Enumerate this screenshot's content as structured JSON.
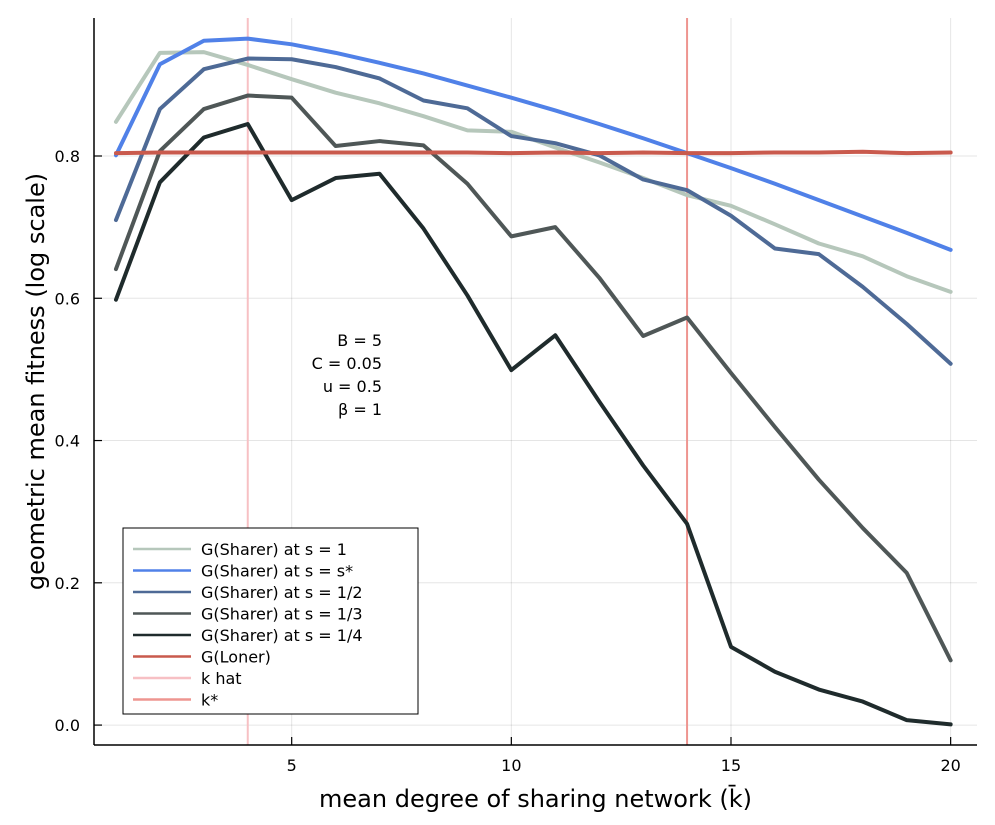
{
  "chart_data": {
    "type": "line",
    "title": "",
    "xlabel": "mean degree of sharing network (k̄)",
    "ylabel": "geometric mean fitness (log scale)",
    "xlim": [
      0.5,
      20.6
    ],
    "ylim": [
      -0.028,
      0.994
    ],
    "xticks": [
      5,
      10,
      15,
      20
    ],
    "xtick_labels": [
      "5",
      "10",
      "15",
      "20"
    ],
    "yticks": [
      0.0,
      0.2,
      0.4,
      0.6,
      0.8
    ],
    "ytick_labels": [
      "0.0",
      "0.2",
      "0.4",
      "0.6",
      "0.8"
    ],
    "grid": true,
    "legend_position": "bottom-left",
    "x": [
      1,
      2,
      3,
      4,
      5,
      6,
      7,
      8,
      9,
      10,
      11,
      12,
      13,
      14,
      15,
      16,
      17,
      18,
      19,
      20
    ],
    "series": [
      {
        "name": "G(Sharer) at s = 1",
        "color": "#b6c7bb",
        "values": [
          0.848,
          0.945,
          0.946,
          0.928,
          0.908,
          0.889,
          0.874,
          0.856,
          0.836,
          0.834,
          0.812,
          0.791,
          0.769,
          0.745,
          0.73,
          0.704,
          0.677,
          0.659,
          0.631,
          0.609
        ]
      },
      {
        "name": "G(Sharer) at s = s*",
        "color": "#5081e8",
        "values": [
          0.801,
          0.929,
          0.962,
          0.965,
          0.957,
          0.945,
          0.931,
          0.916,
          0.899,
          0.882,
          0.864,
          0.845,
          0.825,
          0.804,
          0.783,
          0.761,
          0.738,
          0.715,
          0.692,
          0.668
        ]
      },
      {
        "name": "G(Sharer) at s = 1/2",
        "color": "#4e6a96",
        "values": [
          0.71,
          0.866,
          0.922,
          0.937,
          0.936,
          0.925,
          0.909,
          0.878,
          0.867,
          0.828,
          0.818,
          0.801,
          0.767,
          0.752,
          0.716,
          0.67,
          0.662,
          0.616,
          0.564,
          0.508
        ]
      },
      {
        "name": "G(Sharer) at s = 1/3",
        "color": "#4f5757",
        "values": [
          0.641,
          0.807,
          0.866,
          0.885,
          0.882,
          0.814,
          0.821,
          0.815,
          0.761,
          0.687,
          0.7,
          0.629,
          0.547,
          0.573,
          0.495,
          0.419,
          0.345,
          0.277,
          0.214,
          0.091
        ]
      },
      {
        "name": "G(Sharer) at s = 1/4",
        "color": "#1f2b2c",
        "values": [
          0.598,
          0.763,
          0.826,
          0.845,
          0.738,
          0.769,
          0.775,
          0.698,
          0.604,
          0.499,
          0.548,
          0.455,
          0.365,
          0.283,
          0.11,
          0.075,
          0.05,
          0.033,
          0.007,
          0.001
        ]
      },
      {
        "name": "G(Loner)",
        "color": "#c95a4d",
        "values": [
          0.804,
          0.805,
          0.805,
          0.805,
          0.805,
          0.805,
          0.805,
          0.805,
          0.805,
          0.804,
          0.805,
          0.804,
          0.805,
          0.804,
          0.804,
          0.805,
          0.805,
          0.806,
          0.804,
          0.805
        ]
      }
    ],
    "vlines": [
      {
        "name": "k hat",
        "x": 4,
        "color": "#f7c0c4"
      },
      {
        "name": "k*",
        "x": 14,
        "color": "#ee9590"
      }
    ],
    "annotation": [
      "B = 5",
      "C = 0.05",
      "u = 0.5",
      "β = 1"
    ]
  }
}
